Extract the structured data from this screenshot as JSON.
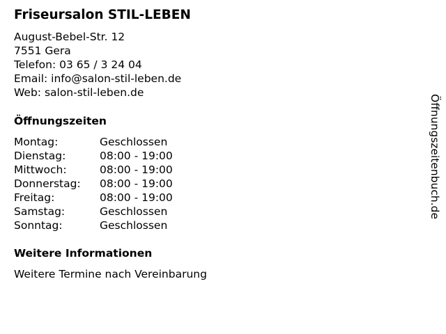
{
  "salon": {
    "name": "Friseursalon STIL-LEBEN",
    "street": "August-Bebel-Str. 12",
    "city": "7551 Gera",
    "phone": "Telefon: 03 65 / 3 24 04",
    "email": "Email: info@salon-stil-leben.de",
    "web": "Web: salon-stil-leben.de"
  },
  "hours": {
    "heading": "Öffnungszeiten",
    "rows": [
      {
        "day": "Montag:",
        "time": "Geschlossen"
      },
      {
        "day": "Dienstag:",
        "time": "08:00 - 19:00"
      },
      {
        "day": "Mittwoch:",
        "time": "08:00 - 19:00"
      },
      {
        "day": "Donnerstag:",
        "time": "08:00 - 19:00"
      },
      {
        "day": "Freitag:",
        "time": "08:00 - 19:00"
      },
      {
        "day": "Samstag:",
        "time": "Geschlossen"
      },
      {
        "day": "Sonntag:",
        "time": "Geschlossen"
      }
    ]
  },
  "more": {
    "heading": "Weitere Informationen",
    "text": "Weitere Termine nach Vereinbarung"
  },
  "watermark": "Öffnungszeitenbuch.de"
}
